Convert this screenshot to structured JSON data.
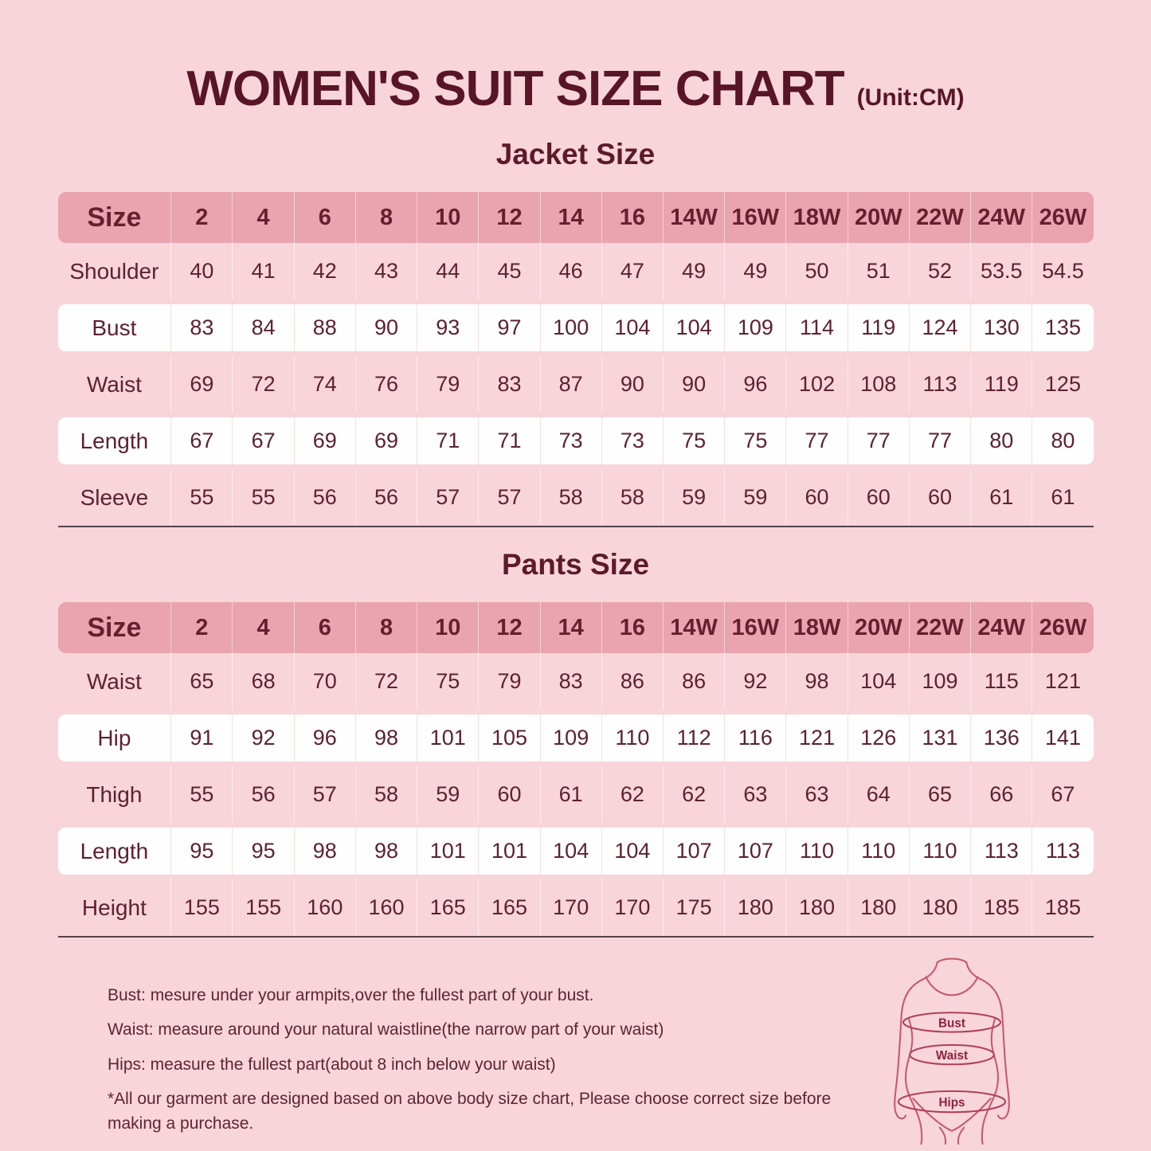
{
  "page": {
    "title": "WOMEN'S SUIT SIZE CHART",
    "unit_label": "(Unit:CM)"
  },
  "chart_data": [
    {
      "type": "table",
      "title": "Jacket Size",
      "columns": [
        "Size",
        "2",
        "4",
        "6",
        "8",
        "10",
        "12",
        "14",
        "16",
        "14W",
        "16W",
        "18W",
        "20W",
        "22W",
        "24W",
        "26W"
      ],
      "rows": [
        {
          "label": "Shoulder",
          "highlight": false,
          "values": [
            "40",
            "41",
            "42",
            "43",
            "44",
            "45",
            "46",
            "47",
            "49",
            "49",
            "50",
            "51",
            "52",
            "53.5",
            "54.5"
          ]
        },
        {
          "label": "Bust",
          "highlight": true,
          "values": [
            "83",
            "84",
            "88",
            "90",
            "93",
            "97",
            "100",
            "104",
            "104",
            "109",
            "114",
            "119",
            "124",
            "130",
            "135"
          ]
        },
        {
          "label": "Waist",
          "highlight": false,
          "values": [
            "69",
            "72",
            "74",
            "76",
            "79",
            "83",
            "87",
            "90",
            "90",
            "96",
            "102",
            "108",
            "113",
            "119",
            "125"
          ]
        },
        {
          "label": "Length",
          "highlight": true,
          "values": [
            "67",
            "67",
            "69",
            "69",
            "71",
            "71",
            "73",
            "73",
            "75",
            "75",
            "77",
            "77",
            "77",
            "80",
            "80"
          ]
        },
        {
          "label": "Sleeve",
          "highlight": false,
          "values": [
            "55",
            "55",
            "56",
            "56",
            "57",
            "57",
            "58",
            "58",
            "59",
            "59",
            "60",
            "60",
            "60",
            "61",
            "61"
          ]
        }
      ]
    },
    {
      "type": "table",
      "title": "Pants Size",
      "columns": [
        "Size",
        "2",
        "4",
        "6",
        "8",
        "10",
        "12",
        "14",
        "16",
        "14W",
        "16W",
        "18W",
        "20W",
        "22W",
        "24W",
        "26W"
      ],
      "rows": [
        {
          "label": "Waist",
          "highlight": false,
          "values": [
            "65",
            "68",
            "70",
            "72",
            "75",
            "79",
            "83",
            "86",
            "86",
            "92",
            "98",
            "104",
            "109",
            "115",
            "121"
          ]
        },
        {
          "label": "Hip",
          "highlight": true,
          "values": [
            "91",
            "92",
            "96",
            "98",
            "101",
            "105",
            "109",
            "110",
            "112",
            "116",
            "121",
            "126",
            "131",
            "136",
            "141"
          ]
        },
        {
          "label": "Thigh",
          "highlight": false,
          "values": [
            "55",
            "56",
            "57",
            "58",
            "59",
            "60",
            "61",
            "62",
            "62",
            "63",
            "63",
            "64",
            "65",
            "66",
            "67"
          ]
        },
        {
          "label": "Length",
          "highlight": true,
          "values": [
            "95",
            "95",
            "98",
            "98",
            "101",
            "101",
            "104",
            "104",
            "107",
            "107",
            "110",
            "110",
            "110",
            "113",
            "113"
          ]
        },
        {
          "label": "Height",
          "highlight": false,
          "values": [
            "155",
            "155",
            "160",
            "160",
            "165",
            "165",
            "170",
            "170",
            "175",
            "180",
            "180",
            "180",
            "180",
            "185",
            "185"
          ]
        }
      ]
    }
  ],
  "notes": [
    "Bust: mesure under your armpits,over the fullest part of your bust.",
    "Waist: measure around your natural waistline(the narrow part of your waist)",
    "Hips: measure the fullest part(about 8 inch below your waist)",
    "*All our garment are designed based on above body size chart, Please choose correct size before making a purchase."
  ],
  "figure": {
    "labels": [
      "Bust",
      "Waist",
      "Hips"
    ]
  },
  "colors": {
    "background": "#f8d5da",
    "header_band": "#e9a4af",
    "title_text": "#581527",
    "table_text": "#5e2130",
    "white_row": "#fefefe",
    "table_bottom_line": "#52434a",
    "figure_outline": "#c4586c",
    "figure_label": "#8d2342"
  }
}
